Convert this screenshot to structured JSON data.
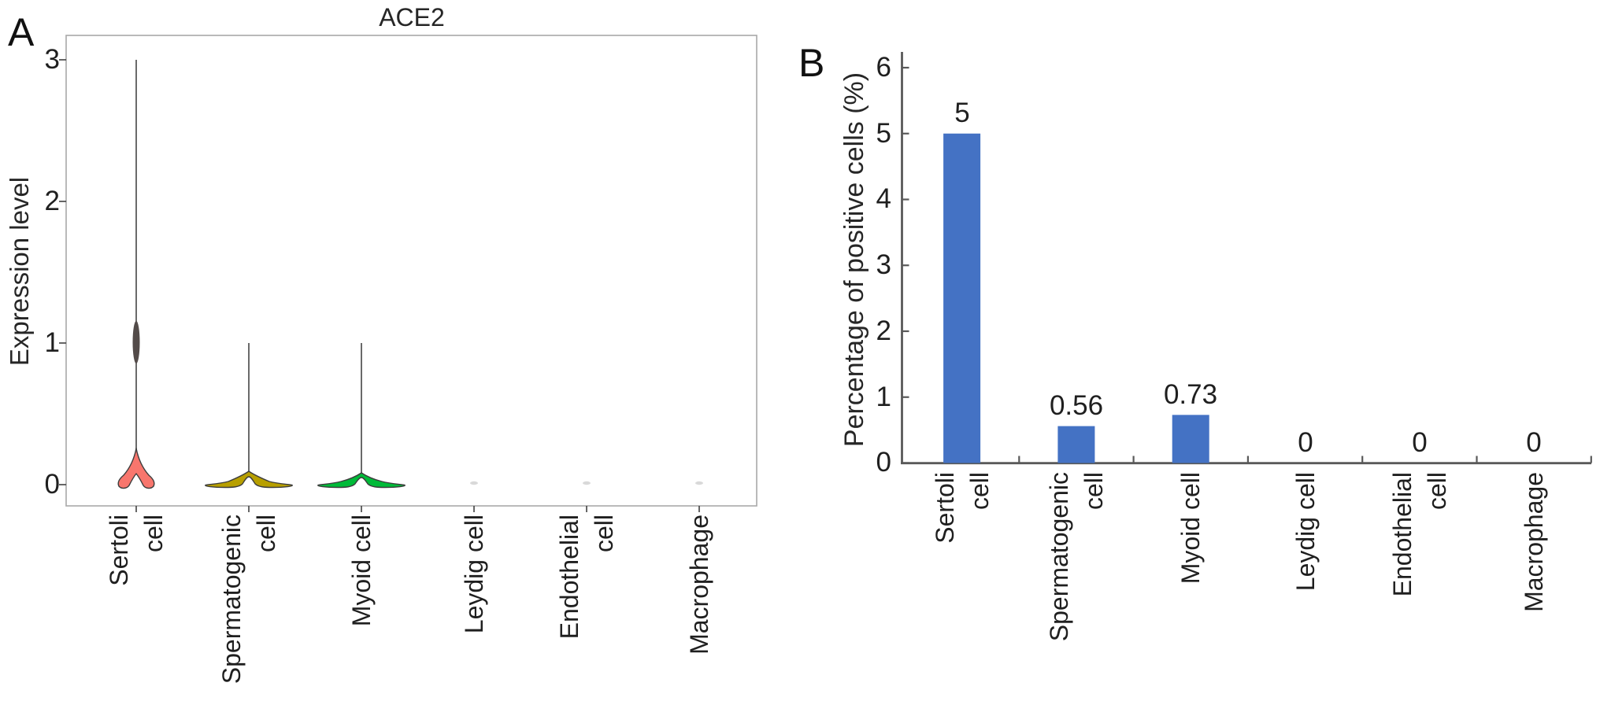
{
  "figure": {
    "panels": [
      {
        "letter": "A"
      },
      {
        "letter": "B"
      }
    ]
  },
  "colors": {
    "bar_blue": "#4472C4",
    "violin_sertoli": "#F8766D",
    "violin_spermatogenic": "#B79F00",
    "violin_myoid": "#00BA38",
    "violin_outline": "#3d3d3d",
    "spike_gray": "#5a5a5a",
    "panel_border": "#a8a8a8",
    "axis_dark": "#595959",
    "tick_dark": "#404040",
    "faint_dot": "#d9d9d9"
  },
  "chart_data": [
    {
      "type": "violin",
      "title": "ACE2",
      "ylabel": "Expression level",
      "categories": [
        "Sertoli\ncell",
        "Spermatogenic\ncell",
        "Myoid cell",
        "Leydig cell",
        "Endothelial\ncell",
        "Macrophage"
      ],
      "yticks": [
        0,
        1,
        2,
        3
      ],
      "ylim": [
        0,
        3
      ],
      "grid": false,
      "series": [
        {
          "category": "Sertoli cell",
          "max_expression": 3,
          "shape": "tall-peak",
          "color": "#F8766D"
        },
        {
          "category": "Spermatogenic cell",
          "max_expression": 1,
          "shape": "flat",
          "color": "#B79F00"
        },
        {
          "category": "Myoid cell",
          "max_expression": 1,
          "shape": "flat",
          "color": "#00BA38"
        },
        {
          "category": "Leydig cell",
          "max_expression": 0,
          "shape": "dot",
          "color": null
        },
        {
          "category": "Endothelial cell",
          "max_expression": 0,
          "shape": "dot",
          "color": null
        },
        {
          "category": "Macrophage",
          "max_expression": 0,
          "shape": "dot",
          "color": null
        }
      ]
    },
    {
      "type": "bar",
      "ylabel": "Percentage of positive cells (%)",
      "categories": [
        "Sertoli\ncell",
        "Spermatogenic\ncell",
        "Myoid cell",
        "Leydig cell",
        "Endothelial\ncell",
        "Macrophage"
      ],
      "values": [
        5,
        0.56,
        0.73,
        0,
        0,
        0
      ],
      "value_labels": [
        "5",
        "0.56",
        "0.73",
        "0",
        "0",
        "0"
      ],
      "yticks": [
        0,
        1,
        2,
        3,
        4,
        5,
        6
      ],
      "ylim": [
        0,
        6
      ],
      "bar_color": "#4472C4",
      "grid": false,
      "legend": null
    }
  ]
}
